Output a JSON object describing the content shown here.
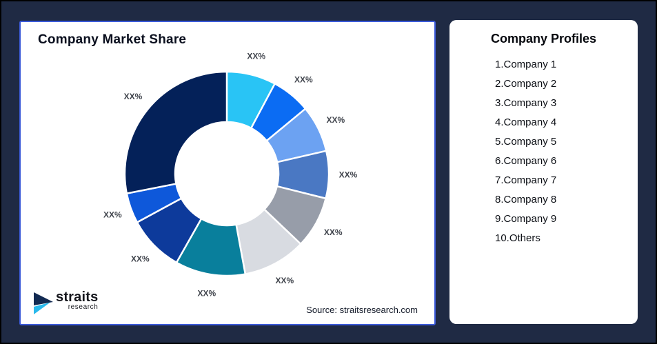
{
  "page": {
    "background_color": "#1F2A44",
    "frame_border_color": "#000000"
  },
  "left_panel": {
    "border_color": "#3B5AD9",
    "title": "Company Market Share",
    "source_text": "Source: straitsresearch.com",
    "logo": {
      "name": "straits",
      "subtitle": "research",
      "icon": "straits-arrow-logo",
      "icon_colors": {
        "dark": "#122A52",
        "cyan": "#29B9EC"
      }
    }
  },
  "right_panel": {
    "title": "Company Profiles",
    "items": [
      "1.Company 1",
      "2.Company 2",
      "3.Company 3",
      "4.Company 4",
      "5.Company 5",
      "6.Company 6",
      "7.Company 7",
      "8.Company 8",
      "9.Company 9",
      "10.Others"
    ]
  },
  "chart_data": {
    "type": "pie",
    "variant": "donut",
    "title": "Company Market Share",
    "legend_position": "none",
    "start_angle_deg": 0,
    "direction": "clockwise",
    "inner_radius_ratio": 0.51,
    "value_note": "percent values are masked as XX% in source image; value_pct estimated from arc angles",
    "segments": [
      {
        "label": "XX%",
        "value_pct": 7.8,
        "color": "#29C4F5"
      },
      {
        "label": "XX%",
        "value_pct": 6.2,
        "color": "#0B6CF3"
      },
      {
        "label": "XX%",
        "value_pct": 7.4,
        "color": "#6CA2F2"
      },
      {
        "label": "XX%",
        "value_pct": 7.5,
        "color": "#4A78C3"
      },
      {
        "label": "XX%",
        "value_pct": 8.2,
        "color": "#979DA9"
      },
      {
        "label": "XX%",
        "value_pct": 10.0,
        "color": "#D8DBE1"
      },
      {
        "label": "XX%",
        "value_pct": 11.1,
        "color": "#097F9C"
      },
      {
        "label": "XX%",
        "value_pct": 8.9,
        "color": "#0D3A9B"
      },
      {
        "label": "XX%",
        "value_pct": 4.8,
        "color": "#0E58DA"
      },
      {
        "label": "XX%",
        "value_pct": 28.1,
        "color": "#042159"
      }
    ]
  }
}
